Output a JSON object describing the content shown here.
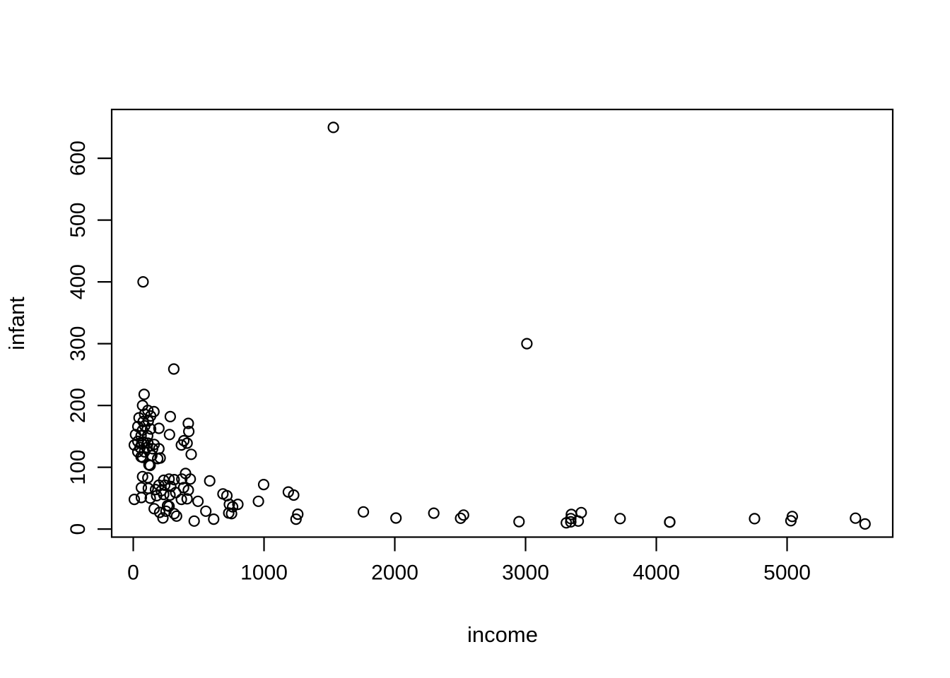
{
  "figure": {
    "background": "#ffffff",
    "axis_color": "#000000",
    "point_color": "#000000"
  },
  "chart_data": {
    "type": "scatter",
    "title": "",
    "xlabel": "income",
    "ylabel": "infant",
    "legend": null,
    "grid": false,
    "marker": "open-circle",
    "x_ticks": [
      0,
      1000,
      2000,
      3000,
      4000,
      5000
    ],
    "y_ticks": [
      0,
      100,
      200,
      300,
      400,
      500,
      600
    ],
    "xlim": [
      -165,
      5808
    ],
    "ylim": [
      -13,
      679
    ],
    "points": [
      [
        1530,
        650
      ],
      [
        75,
        400
      ],
      [
        3010,
        300
      ],
      [
        310,
        259
      ],
      [
        83,
        218
      ],
      [
        71,
        200
      ],
      [
        112,
        192
      ],
      [
        158,
        190
      ],
      [
        87,
        186
      ],
      [
        133,
        183
      ],
      [
        283,
        182
      ],
      [
        44,
        180
      ],
      [
        115,
        175
      ],
      [
        76,
        174
      ],
      [
        88,
        167
      ],
      [
        35,
        166
      ],
      [
        421,
        171
      ],
      [
        133,
        162
      ],
      [
        196,
        163
      ],
      [
        71,
        160
      ],
      [
        425,
        158
      ],
      [
        277,
        153
      ],
      [
        17,
        153
      ],
      [
        60,
        151
      ],
      [
        110,
        151
      ],
      [
        387,
        143
      ],
      [
        35,
        142
      ],
      [
        79,
        141
      ],
      [
        65,
        138
      ],
      [
        112,
        139
      ],
      [
        160,
        137
      ],
      [
        8,
        136
      ],
      [
        52,
        132
      ],
      [
        106,
        132
      ],
      [
        148,
        130
      ],
      [
        196,
        130
      ],
      [
        35,
        125
      ],
      [
        86,
        125
      ],
      [
        142,
        119
      ],
      [
        60,
        117
      ],
      [
        72,
        116
      ],
      [
        187,
        114
      ],
      [
        206,
        115
      ],
      [
        120,
        104
      ],
      [
        129,
        103
      ],
      [
        368,
        136
      ],
      [
        412,
        139
      ],
      [
        443,
        121
      ],
      [
        71,
        85
      ],
      [
        112,
        83
      ],
      [
        400,
        90
      ],
      [
        436,
        81
      ],
      [
        371,
        81
      ],
      [
        233,
        79
      ],
      [
        274,
        81
      ],
      [
        313,
        80
      ],
      [
        196,
        71
      ],
      [
        241,
        71
      ],
      [
        287,
        69
      ],
      [
        62,
        67
      ],
      [
        115,
        66
      ],
      [
        170,
        64
      ],
      [
        214,
        62
      ],
      [
        325,
        59
      ],
      [
        385,
        67
      ],
      [
        421,
        63
      ],
      [
        585,
        78
      ],
      [
        62,
        51
      ],
      [
        130,
        50
      ],
      [
        8,
        48
      ],
      [
        179,
        54
      ],
      [
        233,
        56
      ],
      [
        281,
        55
      ],
      [
        368,
        48
      ],
      [
        412,
        49
      ],
      [
        495,
        45
      ],
      [
        202,
        27
      ],
      [
        250,
        29
      ],
      [
        313,
        25
      ],
      [
        227,
        18
      ],
      [
        331,
        21
      ],
      [
        262,
        38
      ],
      [
        274,
        37
      ],
      [
        160,
        33
      ],
      [
        466,
        13
      ],
      [
        555,
        29
      ],
      [
        615,
        16
      ],
      [
        686,
        57
      ],
      [
        716,
        54
      ],
      [
        735,
        40
      ],
      [
        760,
        36
      ],
      [
        800,
        40
      ],
      [
        730,
        26
      ],
      [
        752,
        25
      ],
      [
        957,
        45
      ],
      [
        997,
        72
      ],
      [
        1186,
        60
      ],
      [
        1227,
        55
      ],
      [
        1245,
        16
      ],
      [
        1258,
        24
      ],
      [
        1760,
        27.8
      ],
      [
        2009,
        17.8
      ],
      [
        2298,
        25.7
      ],
      [
        2503,
        17.5
      ],
      [
        2526,
        22.7
      ],
      [
        2950,
        12
      ],
      [
        3312,
        10.1
      ],
      [
        3346,
        11.7
      ],
      [
        3346,
        17.0
      ],
      [
        3350,
        23.7
      ],
      [
        3403,
        12.9
      ],
      [
        3426,
        26.7
      ],
      [
        3723,
        16.9
      ],
      [
        4102,
        11.3
      ],
      [
        4103,
        11.5
      ],
      [
        4751,
        16.8
      ],
      [
        5029,
        13.5
      ],
      [
        5040,
        20.4
      ],
      [
        5523,
        17.6
      ],
      [
        5596,
        8.3
      ]
    ]
  }
}
